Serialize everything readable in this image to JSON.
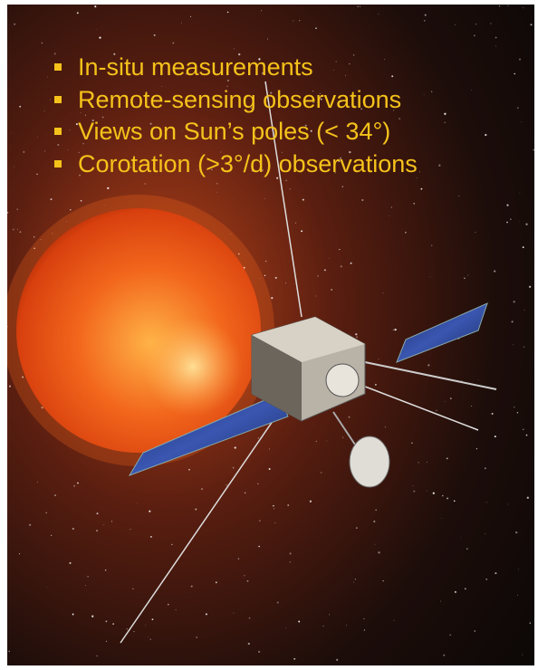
{
  "bullets": [
    "In-situ measurements",
    "Remote-sensing observations",
    "Views on Sun’s poles (< 34°)",
    "Corotation (>3°/d) observations"
  ]
}
